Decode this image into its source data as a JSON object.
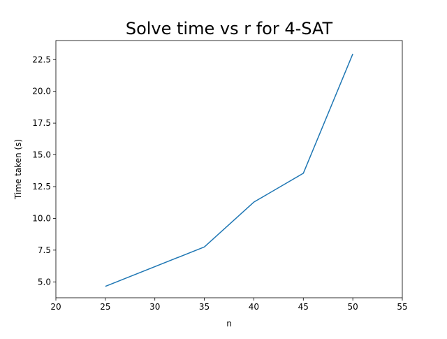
{
  "chart_data": {
    "type": "line",
    "title": "Solve time vs r for 4-SAT",
    "xlabel": "n",
    "ylabel": "Time taken (s)",
    "xlim": [
      20,
      55
    ],
    "ylim": [
      3.75,
      24.0
    ],
    "xticks": [
      "20",
      "25",
      "30",
      "35",
      "40",
      "45",
      "50",
      "55"
    ],
    "yticks": [
      "5.0",
      "7.5",
      "10.0",
      "12.5",
      "15.0",
      "17.5",
      "20.0",
      "22.5"
    ],
    "grid": false,
    "series": [
      {
        "x": [
          25,
          35,
          40,
          45,
          50
        ],
        "values": [
          4.65,
          7.75,
          11.28,
          13.55,
          22.95
        ],
        "color": "#1f77b4"
      }
    ]
  }
}
